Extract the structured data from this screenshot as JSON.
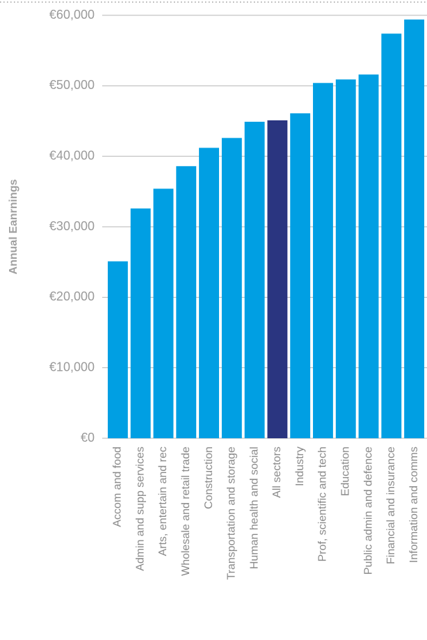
{
  "chart_data": {
    "type": "bar",
    "y_label": "Annual Eanrnings",
    "categories": [
      "Accom and food",
      "Admin and supp services",
      "Arts, entertain and rec",
      "Wholesale and retail trade",
      "Construction",
      "Transportation and storage",
      "Human health and social",
      "All sectors",
      "Industry",
      "Prof, scientific and tech",
      "Education",
      "Public admin and defence",
      "Financial and insurance",
      "Information and comms"
    ],
    "values": [
      25100,
      32600,
      35400,
      38600,
      41200,
      42600,
      44900,
      45100,
      46100,
      50400,
      50900,
      51600,
      57400,
      59400
    ],
    "colors": [
      "#009fe3",
      "#009fe3",
      "#009fe3",
      "#009fe3",
      "#009fe3",
      "#009fe3",
      "#009fe3",
      "#2a3580",
      "#009fe3",
      "#009fe3",
      "#009fe3",
      "#009fe3",
      "#009fe3",
      "#009fe3"
    ],
    "ylim": [
      0,
      60000
    ],
    "yticks": [
      {
        "value": 0,
        "label": "€0"
      },
      {
        "value": 10000,
        "label": "€10,000"
      },
      {
        "value": 20000,
        "label": "€20,000"
      },
      {
        "value": 30000,
        "label": "€30,000"
      },
      {
        "value": 40000,
        "label": "€40,000"
      },
      {
        "value": 50000,
        "label": "€50,000"
      },
      {
        "value": 60000,
        "label": "€60,000"
      }
    ],
    "grid": true
  }
}
